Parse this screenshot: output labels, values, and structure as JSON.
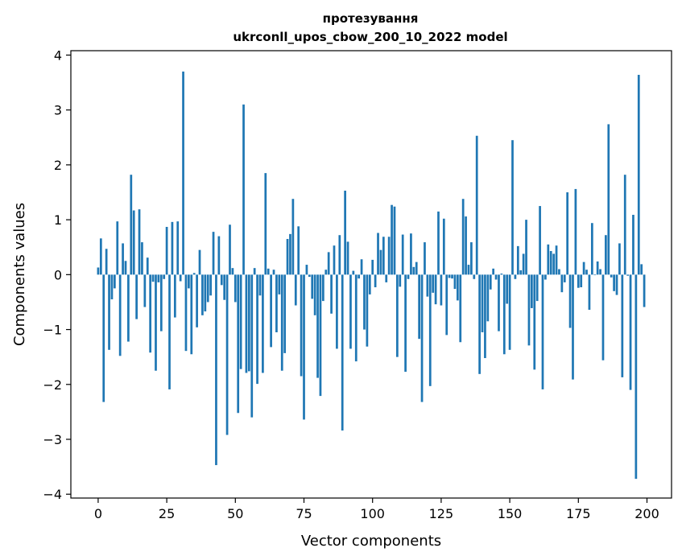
{
  "chart_data": {
    "type": "bar",
    "title_lines": [
      "протезування",
      "ukrconll_upos_cbow_200_10_2022 model"
    ],
    "xlabel": "Vector components",
    "ylabel": "Components values",
    "xlim": [
      -9.95,
      208.95
    ],
    "ylim": [
      -4.07,
      4.08
    ],
    "xticks": [
      0,
      25,
      50,
      75,
      100,
      125,
      150,
      175,
      200
    ],
    "xtick_labels": [
      "0",
      "25",
      "50",
      "75",
      "100",
      "125",
      "150",
      "175",
      "200"
    ],
    "yticks": [
      -4,
      -3,
      -2,
      -1,
      0,
      1,
      2,
      3,
      4
    ],
    "ytick_labels": [
      "−4",
      "−3",
      "−2",
      "−1",
      "0",
      "1",
      "2",
      "3",
      "4"
    ],
    "grid": false,
    "bar_color": "#1f77b4",
    "bar_width": 0.8,
    "x": [
      0,
      1,
      2,
      3,
      4,
      5,
      6,
      7,
      8,
      9,
      10,
      11,
      12,
      13,
      14,
      15,
      16,
      17,
      18,
      19,
      20,
      21,
      22,
      23,
      24,
      25,
      26,
      27,
      28,
      29,
      30,
      31,
      32,
      33,
      34,
      35,
      36,
      37,
      38,
      39,
      40,
      41,
      42,
      43,
      44,
      45,
      46,
      47,
      48,
      49,
      50,
      51,
      52,
      53,
      54,
      55,
      56,
      57,
      58,
      59,
      60,
      61,
      62,
      63,
      64,
      65,
      66,
      67,
      68,
      69,
      70,
      71,
      72,
      73,
      74,
      75,
      76,
      77,
      78,
      79,
      80,
      81,
      82,
      83,
      84,
      85,
      86,
      87,
      88,
      89,
      90,
      91,
      92,
      93,
      94,
      95,
      96,
      97,
      98,
      99,
      100,
      101,
      102,
      103,
      104,
      105,
      106,
      107,
      108,
      109,
      110,
      111,
      112,
      113,
      114,
      115,
      116,
      117,
      118,
      119,
      120,
      121,
      122,
      123,
      124,
      125,
      126,
      127,
      128,
      129,
      130,
      131,
      132,
      133,
      134,
      135,
      136,
      137,
      138,
      139,
      140,
      141,
      142,
      143,
      144,
      145,
      146,
      147,
      148,
      149,
      150,
      151,
      152,
      153,
      154,
      155,
      156,
      157,
      158,
      159,
      160,
      161,
      162,
      163,
      164,
      165,
      166,
      167,
      168,
      169,
      170,
      171,
      172,
      173,
      174,
      175,
      176,
      177,
      178,
      179,
      180,
      181,
      182,
      183,
      184,
      185,
      186,
      187,
      188,
      189,
      190,
      191,
      192,
      193,
      194,
      195,
      196,
      197,
      198,
      199
    ],
    "values": [
      0.13,
      0.66,
      -2.32,
      0.47,
      -1.37,
      -0.45,
      -0.25,
      0.97,
      -1.48,
      0.57,
      0.25,
      -1.22,
      1.82,
      1.17,
      -0.81,
      1.19,
      0.59,
      -0.59,
      0.31,
      -1.42,
      -0.13,
      -1.75,
      -0.14,
      -1.03,
      -0.08,
      0.87,
      -2.09,
      0.96,
      -0.78,
      0.97,
      -0.12,
      3.7,
      -1.39,
      -0.25,
      -1.45,
      0.03,
      -0.96,
      0.45,
      -0.74,
      -0.67,
      -0.5,
      -0.38,
      0.78,
      -3.47,
      0.7,
      -0.19,
      -0.46,
      -2.92,
      0.91,
      0.12,
      -0.5,
      -2.52,
      -1.72,
      3.1,
      -1.79,
      -1.76,
      -2.6,
      0.12,
      -1.99,
      -0.38,
      -1.79,
      1.85,
      0.11,
      -1.32,
      0.09,
      -1.05,
      -0.36,
      -1.75,
      -1.43,
      0.65,
      0.74,
      1.38,
      -0.56,
      0.88,
      -1.85,
      -2.64,
      0.18,
      -0.04,
      -0.44,
      -0.74,
      -1.88,
      -2.21,
      -0.48,
      0.09,
      0.41,
      -0.71,
      0.53,
      -1.35,
      0.72,
      -2.84,
      1.53,
      0.6,
      -1.35,
      0.07,
      -1.58,
      -0.07,
      0.28,
      -1.0,
      -1.31,
      -0.36,
      0.27,
      -0.23,
      0.76,
      0.45,
      0.69,
      -0.14,
      0.69,
      1.27,
      1.24,
      -1.5,
      -0.22,
      0.73,
      -1.77,
      -0.08,
      0.75,
      0.14,
      0.23,
      -1.17,
      -2.32,
      0.59,
      -0.4,
      -2.03,
      -0.33,
      -0.54,
      1.15,
      -0.56,
      1.02,
      -1.1,
      -0.06,
      -0.07,
      -0.26,
      -0.47,
      -1.23,
      1.38,
      1.06,
      0.18,
      0.59,
      -0.08,
      2.53,
      -1.81,
      -1.05,
      -1.52,
      -0.85,
      -0.27,
      0.11,
      -0.09,
      -1.03,
      0.02,
      -1.45,
      -0.53,
      -1.37,
      2.45,
      -0.08,
      0.52,
      0.08,
      0.38,
      1.0,
      -1.29,
      -0.61,
      -1.73,
      -0.48,
      1.25,
      -2.09,
      -0.09,
      0.55,
      0.43,
      0.38,
      0.53,
      0.1,
      -0.32,
      -0.14,
      1.5,
      -0.97,
      -1.91,
      1.56,
      -0.24,
      -0.23,
      0.23,
      0.09,
      -0.64,
      0.94,
      -0.01,
      0.24,
      0.1,
      -1.56,
      0.72,
      2.74,
      -0.05,
      -0.3,
      -0.37,
      0.57,
      -1.87,
      1.82,
      -0.02,
      -2.1,
      1.09,
      -3.72,
      3.64,
      0.19,
      -0.59
    ]
  }
}
